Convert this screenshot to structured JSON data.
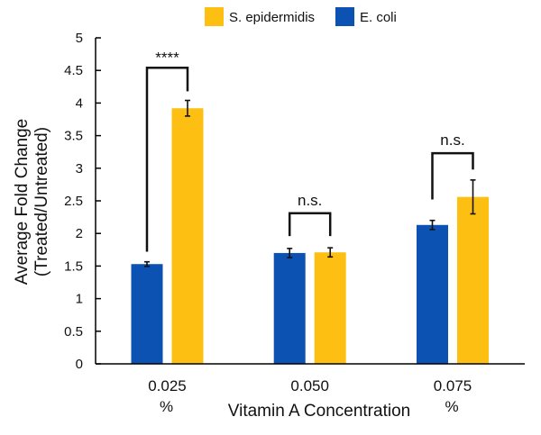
{
  "chart_data": {
    "type": "bar",
    "title": "",
    "xlabel": "Vitamin A Concentration",
    "ylabel": "Average Fold Change (Treated/Untreated)",
    "ylabel_lines": [
      "Average Fold Change",
      "(Treated/Untreated)"
    ],
    "ylim": [
      0,
      5
    ],
    "yticks": [
      "0",
      "0.5",
      "1",
      "1.5",
      "2",
      "2.5",
      "3",
      "3.5",
      "4",
      "4.5",
      "5"
    ],
    "categories": [
      [
        "0.025",
        "%"
      ],
      [
        "0.050",
        ""
      ],
      [
        "0.075",
        "%"
      ]
    ],
    "legend_position": "top",
    "grid": false,
    "series": [
      {
        "name": "E. coli",
        "color": "#0b52b3",
        "values": [
          1.53,
          1.7,
          2.13
        ],
        "errors": [
          0.035,
          0.07,
          0.07
        ]
      },
      {
        "name": "S. epidermidis",
        "color": "#fdc012",
        "values": [
          3.92,
          1.71,
          2.56
        ],
        "errors": [
          0.12,
          0.07,
          0.26
        ]
      }
    ],
    "legend_order": [
      "S. epidermidis",
      "E. coli"
    ],
    "significance": [
      {
        "label": "****",
        "bracket_top": 4.54,
        "left_end": 1.72,
        "right_end": 4.18
      },
      {
        "label": "n.s.",
        "bracket_top": 2.31,
        "left_end": 1.96,
        "right_end": 1.96
      },
      {
        "label": "n.s.",
        "bracket_top": 3.23,
        "left_end": 2.52,
        "right_end": 2.98
      }
    ]
  }
}
